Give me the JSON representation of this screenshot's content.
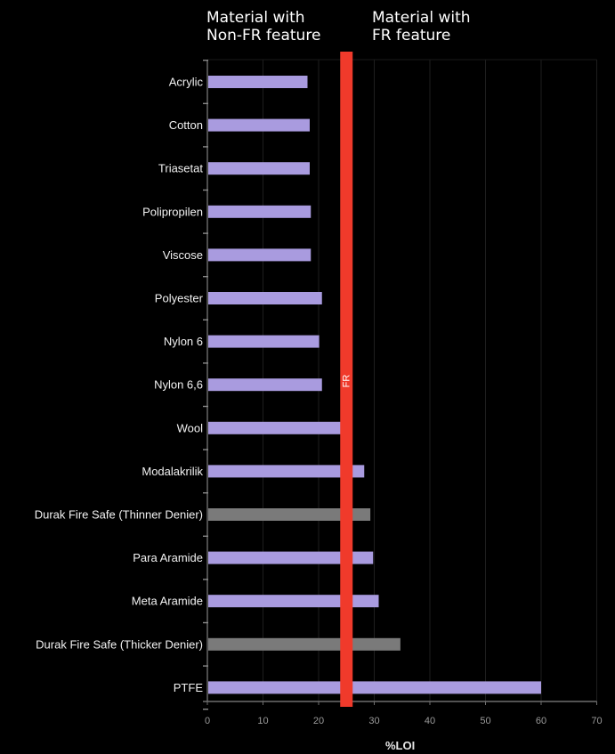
{
  "headers": {
    "left": [
      "Material with",
      "Non-FR feature"
    ],
    "right": [
      "Material with",
      "FR feature"
    ]
  },
  "chart_data": {
    "type": "bar",
    "orientation": "horizontal",
    "xlabel": "%LOI",
    "xlim": [
      0,
      70
    ],
    "xticks": [
      0,
      10,
      20,
      30,
      40,
      50,
      60,
      70
    ],
    "grid": true,
    "categories": [
      "Acrylic",
      "Cotton",
      "Triasetat",
      "Polipropilen",
      "Viscose",
      "Polyester",
      "Nylon 6",
      "Nylon 6,6",
      "Wool",
      "Modalakrilik",
      "Durak Fire Safe (Thinner Denier)",
      "Para Aramide",
      "Meta Aramide",
      "Durak Fire Safe (Thicker Denier)",
      "PTFE"
    ],
    "values": [
      18,
      18.4,
      18.4,
      18.6,
      18.6,
      20.6,
      20.1,
      20.6,
      24,
      28.2,
      29.3,
      29.8,
      30.8,
      34.7,
      60
    ],
    "bar_colors": [
      "#a99bdf",
      "#a99bdf",
      "#a99bdf",
      "#a99bdf",
      "#a99bdf",
      "#a99bdf",
      "#a99bdf",
      "#a99bdf",
      "#a99bdf",
      "#a99bdf",
      "#7a7a7a",
      "#a99bdf",
      "#a99bdf",
      "#7a7a7a",
      "#a99bdf"
    ],
    "threshold": {
      "value": 25,
      "label": "FR",
      "color": "#f03a2b"
    }
  }
}
